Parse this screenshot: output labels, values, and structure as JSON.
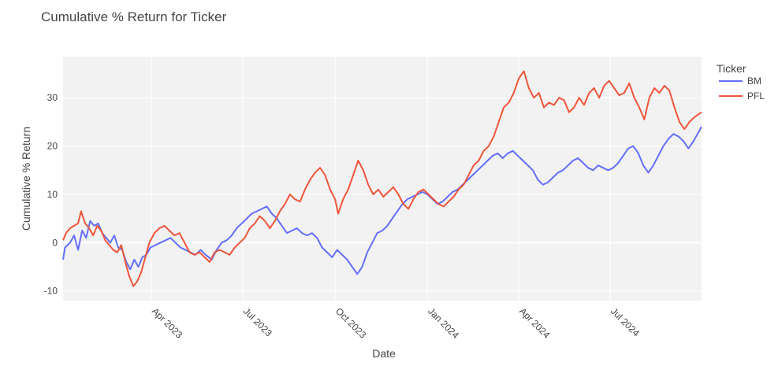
{
  "chart_data": {
    "type": "line",
    "title": "Cumulative % Return for Ticker",
    "xlabel": "Date",
    "ylabel": "Cumulative % Return",
    "xlim": [
      "2023-01-03",
      "2024-09-30"
    ],
    "ylim": [
      -12,
      38.5
    ],
    "x_tick_labels": [
      {
        "date": "2023-04-01",
        "label": "Apr 2023"
      },
      {
        "date": "2023-07-01",
        "label": "Jul 2023"
      },
      {
        "date": "2023-10-01",
        "label": "Oct 2023"
      },
      {
        "date": "2024-01-01",
        "label": "Jan 2024"
      },
      {
        "date": "2024-04-01",
        "label": "Apr 2024"
      },
      {
        "date": "2024-07-01",
        "label": "Jul 2024"
      }
    ],
    "y_ticks": [
      -10,
      0,
      10,
      20,
      30
    ],
    "grid": true,
    "legend": {
      "title": "Ticker",
      "position": "top-right"
    },
    "series": [
      {
        "name": "BM",
        "color": "#636efa",
        "points": [
          [
            "2023-01-03",
            -3.5
          ],
          [
            "2023-01-05",
            -1
          ],
          [
            "2023-01-10",
            0
          ],
          [
            "2023-01-14",
            1.5
          ],
          [
            "2023-01-18",
            -1.5
          ],
          [
            "2023-01-22",
            2.5
          ],
          [
            "2023-01-26",
            1
          ],
          [
            "2023-01-30",
            4.5
          ],
          [
            "2023-02-03",
            3.5
          ],
          [
            "2023-02-07",
            4
          ],
          [
            "2023-02-11",
            2
          ],
          [
            "2023-02-15",
            1
          ],
          [
            "2023-02-19",
            0
          ],
          [
            "2023-02-23",
            1.5
          ],
          [
            "2023-02-27",
            -1
          ],
          [
            "2023-03-03",
            -1.5
          ],
          [
            "2023-03-07",
            -4
          ],
          [
            "2023-03-11",
            -5.5
          ],
          [
            "2023-03-15",
            -3.5
          ],
          [
            "2023-03-19",
            -5
          ],
          [
            "2023-03-23",
            -3
          ],
          [
            "2023-03-27",
            -2.5
          ],
          [
            "2023-03-31",
            -1
          ],
          [
            "2023-04-05",
            -0.5
          ],
          [
            "2023-04-10",
            0
          ],
          [
            "2023-04-15",
            0.5
          ],
          [
            "2023-04-20",
            1
          ],
          [
            "2023-04-25",
            0
          ],
          [
            "2023-04-30",
            -1
          ],
          [
            "2023-05-05",
            -1.5
          ],
          [
            "2023-05-10",
            -2
          ],
          [
            "2023-05-15",
            -2.5
          ],
          [
            "2023-05-20",
            -1.5
          ],
          [
            "2023-05-25",
            -2.5
          ],
          [
            "2023-05-31",
            -3.5
          ],
          [
            "2023-06-05",
            -1.5
          ],
          [
            "2023-06-10",
            0
          ],
          [
            "2023-06-15",
            0.5
          ],
          [
            "2023-06-20",
            1.5
          ],
          [
            "2023-06-25",
            3
          ],
          [
            "2023-06-30",
            4
          ],
          [
            "2023-07-05",
            5
          ],
          [
            "2023-07-10",
            6
          ],
          [
            "2023-07-15",
            6.5
          ],
          [
            "2023-07-20",
            7
          ],
          [
            "2023-07-25",
            7.5
          ],
          [
            "2023-07-30",
            6
          ],
          [
            "2023-08-04",
            5
          ],
          [
            "2023-08-09",
            3.5
          ],
          [
            "2023-08-14",
            2
          ],
          [
            "2023-08-19",
            2.5
          ],
          [
            "2023-08-24",
            3
          ],
          [
            "2023-08-29",
            2
          ],
          [
            "2023-09-03",
            1.5
          ],
          [
            "2023-09-08",
            2
          ],
          [
            "2023-09-13",
            1
          ],
          [
            "2023-09-18",
            -1
          ],
          [
            "2023-09-23",
            -2
          ],
          [
            "2023-09-28",
            -3
          ],
          [
            "2023-10-03",
            -1.5
          ],
          [
            "2023-10-08",
            -2.5
          ],
          [
            "2023-10-13",
            -3.5
          ],
          [
            "2023-10-18",
            -5
          ],
          [
            "2023-10-23",
            -6.5
          ],
          [
            "2023-10-28",
            -5
          ],
          [
            "2023-11-02",
            -2
          ],
          [
            "2023-11-07",
            0
          ],
          [
            "2023-11-12",
            2
          ],
          [
            "2023-11-17",
            2.5
          ],
          [
            "2023-11-22",
            3.5
          ],
          [
            "2023-11-27",
            5
          ],
          [
            "2023-12-02",
            6.5
          ],
          [
            "2023-12-07",
            8
          ],
          [
            "2023-12-12",
            9
          ],
          [
            "2023-12-17",
            9.5
          ],
          [
            "2023-12-22",
            10
          ],
          [
            "2023-12-27",
            10.5
          ],
          [
            "2024-01-01",
            10
          ],
          [
            "2024-01-06",
            9
          ],
          [
            "2024-01-11",
            8
          ],
          [
            "2024-01-16",
            8.5
          ],
          [
            "2024-01-21",
            9.5
          ],
          [
            "2024-01-26",
            10.5
          ],
          [
            "2024-01-31",
            11
          ],
          [
            "2024-02-05",
            12
          ],
          [
            "2024-02-10",
            13
          ],
          [
            "2024-02-15",
            14
          ],
          [
            "2024-02-20",
            15
          ],
          [
            "2024-02-25",
            16
          ],
          [
            "2024-03-01",
            17
          ],
          [
            "2024-03-06",
            18
          ],
          [
            "2024-03-11",
            18.5
          ],
          [
            "2024-03-16",
            17.5
          ],
          [
            "2024-03-21",
            18.5
          ],
          [
            "2024-03-26",
            19
          ],
          [
            "2024-03-31",
            18
          ],
          [
            "2024-04-05",
            17
          ],
          [
            "2024-04-10",
            16
          ],
          [
            "2024-04-15",
            15
          ],
          [
            "2024-04-20",
            13
          ],
          [
            "2024-04-25",
            12
          ],
          [
            "2024-04-30",
            12.5
          ],
          [
            "2024-05-05",
            13.5
          ],
          [
            "2024-05-10",
            14.5
          ],
          [
            "2024-05-15",
            15
          ],
          [
            "2024-05-20",
            16
          ],
          [
            "2024-05-25",
            17
          ],
          [
            "2024-05-30",
            17.5
          ],
          [
            "2024-06-04",
            16.5
          ],
          [
            "2024-06-09",
            15.5
          ],
          [
            "2024-06-14",
            15
          ],
          [
            "2024-06-19",
            16
          ],
          [
            "2024-06-24",
            15.5
          ],
          [
            "2024-06-29",
            15
          ],
          [
            "2024-07-04",
            15.5
          ],
          [
            "2024-07-09",
            16.5
          ],
          [
            "2024-07-14",
            18
          ],
          [
            "2024-07-19",
            19.5
          ],
          [
            "2024-07-24",
            20
          ],
          [
            "2024-07-29",
            18.5
          ],
          [
            "2024-08-03",
            16
          ],
          [
            "2024-08-08",
            14.5
          ],
          [
            "2024-08-13",
            16
          ],
          [
            "2024-08-18",
            18
          ],
          [
            "2024-08-23",
            20
          ],
          [
            "2024-08-28",
            21.5
          ],
          [
            "2024-09-02",
            22.5
          ],
          [
            "2024-09-07",
            22
          ],
          [
            "2024-09-12",
            21
          ],
          [
            "2024-09-17",
            19.5
          ],
          [
            "2024-09-22",
            21
          ],
          [
            "2024-09-26",
            22.5
          ],
          [
            "2024-09-30",
            24
          ]
        ]
      },
      {
        "name": "PFL",
        "color": "#ef553b",
        "points": [
          [
            "2023-01-03",
            0.5
          ],
          [
            "2023-01-06",
            2
          ],
          [
            "2023-01-10",
            3
          ],
          [
            "2023-01-14",
            3.5
          ],
          [
            "2023-01-18",
            4
          ],
          [
            "2023-01-21",
            6.5
          ],
          [
            "2023-01-25",
            4
          ],
          [
            "2023-01-29",
            3
          ],
          [
            "2023-02-02",
            1.5
          ],
          [
            "2023-02-06",
            3.5
          ],
          [
            "2023-02-10",
            2.5
          ],
          [
            "2023-02-14",
            0.5
          ],
          [
            "2023-02-18",
            -0.5
          ],
          [
            "2023-02-22",
            -1.5
          ],
          [
            "2023-02-26",
            -2
          ],
          [
            "2023-03-02",
            -0.5
          ],
          [
            "2023-03-06",
            -4
          ],
          [
            "2023-03-10",
            -7
          ],
          [
            "2023-03-14",
            -9
          ],
          [
            "2023-03-18",
            -8
          ],
          [
            "2023-03-22",
            -6
          ],
          [
            "2023-03-26",
            -3
          ],
          [
            "2023-03-30",
            0
          ],
          [
            "2023-04-04",
            2
          ],
          [
            "2023-04-09",
            3
          ],
          [
            "2023-04-14",
            3.5
          ],
          [
            "2023-04-19",
            2.5
          ],
          [
            "2023-04-24",
            1.5
          ],
          [
            "2023-04-29",
            2
          ],
          [
            "2023-05-04",
            0
          ],
          [
            "2023-05-09",
            -2
          ],
          [
            "2023-05-14",
            -2.5
          ],
          [
            "2023-05-19",
            -2
          ],
          [
            "2023-05-24",
            -3
          ],
          [
            "2023-05-29",
            -4
          ],
          [
            "2023-06-03",
            -2
          ],
          [
            "2023-06-08",
            -1.5
          ],
          [
            "2023-06-13",
            -2
          ],
          [
            "2023-06-18",
            -2.5
          ],
          [
            "2023-06-23",
            -1
          ],
          [
            "2023-06-28",
            0
          ],
          [
            "2023-07-03",
            1
          ],
          [
            "2023-07-08",
            3
          ],
          [
            "2023-07-13",
            4
          ],
          [
            "2023-07-18",
            5.5
          ],
          [
            "2023-07-23",
            4.5
          ],
          [
            "2023-07-28",
            3
          ],
          [
            "2023-08-02",
            4.5
          ],
          [
            "2023-08-07",
            6.5
          ],
          [
            "2023-08-12",
            8
          ],
          [
            "2023-08-17",
            10
          ],
          [
            "2023-08-22",
            9
          ],
          [
            "2023-08-27",
            8.5
          ],
          [
            "2023-09-01",
            11
          ],
          [
            "2023-09-06",
            13
          ],
          [
            "2023-09-11",
            14.5
          ],
          [
            "2023-09-16",
            15.5
          ],
          [
            "2023-09-21",
            14
          ],
          [
            "2023-09-26",
            11
          ],
          [
            "2023-10-01",
            9
          ],
          [
            "2023-10-04",
            6
          ],
          [
            "2023-10-09",
            9
          ],
          [
            "2023-10-14",
            11
          ],
          [
            "2023-10-19",
            14
          ],
          [
            "2023-10-24",
            17
          ],
          [
            "2023-10-29",
            15
          ],
          [
            "2023-11-03",
            12
          ],
          [
            "2023-11-08",
            10
          ],
          [
            "2023-11-13",
            11
          ],
          [
            "2023-11-18",
            9.5
          ],
          [
            "2023-11-23",
            10.5
          ],
          [
            "2023-11-28",
            11.5
          ],
          [
            "2023-12-03",
            10
          ],
          [
            "2023-12-08",
            8
          ],
          [
            "2023-12-13",
            7
          ],
          [
            "2023-12-18",
            9
          ],
          [
            "2023-12-23",
            10.5
          ],
          [
            "2023-12-28",
            11
          ],
          [
            "2024-01-02",
            10
          ],
          [
            "2024-01-07",
            9
          ],
          [
            "2024-01-12",
            8
          ],
          [
            "2024-01-17",
            7.5
          ],
          [
            "2024-01-22",
            8.5
          ],
          [
            "2024-01-27",
            9.5
          ],
          [
            "2024-02-01",
            11
          ],
          [
            "2024-02-06",
            12
          ],
          [
            "2024-02-11",
            14
          ],
          [
            "2024-02-16",
            16
          ],
          [
            "2024-02-21",
            17
          ],
          [
            "2024-02-26",
            19
          ],
          [
            "2024-03-02",
            20
          ],
          [
            "2024-03-07",
            22
          ],
          [
            "2024-03-12",
            25
          ],
          [
            "2024-03-17",
            28
          ],
          [
            "2024-03-22",
            29
          ],
          [
            "2024-03-27",
            31
          ],
          [
            "2024-04-01",
            34
          ],
          [
            "2024-04-06",
            35.5
          ],
          [
            "2024-04-11",
            32
          ],
          [
            "2024-04-16",
            30
          ],
          [
            "2024-04-21",
            31
          ],
          [
            "2024-04-26",
            28
          ],
          [
            "2024-05-01",
            29
          ],
          [
            "2024-05-06",
            28.5
          ],
          [
            "2024-05-11",
            30
          ],
          [
            "2024-05-16",
            29.5
          ],
          [
            "2024-05-21",
            27
          ],
          [
            "2024-05-26",
            28
          ],
          [
            "2024-05-31",
            30
          ],
          [
            "2024-06-05",
            28.5
          ],
          [
            "2024-06-10",
            31
          ],
          [
            "2024-06-15",
            32
          ],
          [
            "2024-06-20",
            30
          ],
          [
            "2024-06-25",
            32.5
          ],
          [
            "2024-06-30",
            33.5
          ],
          [
            "2024-07-05",
            32
          ],
          [
            "2024-07-10",
            30.5
          ],
          [
            "2024-07-15",
            31
          ],
          [
            "2024-07-20",
            33
          ],
          [
            "2024-07-25",
            30
          ],
          [
            "2024-07-30",
            28
          ],
          [
            "2024-08-04",
            25.5
          ],
          [
            "2024-08-09",
            30
          ],
          [
            "2024-08-14",
            32
          ],
          [
            "2024-08-19",
            31
          ],
          [
            "2024-08-24",
            32.5
          ],
          [
            "2024-08-29",
            31.5
          ],
          [
            "2024-09-03",
            28
          ],
          [
            "2024-09-08",
            25
          ],
          [
            "2024-09-13",
            23.5
          ],
          [
            "2024-09-18",
            25
          ],
          [
            "2024-09-23",
            26
          ],
          [
            "2024-09-30",
            27
          ]
        ]
      }
    ]
  }
}
